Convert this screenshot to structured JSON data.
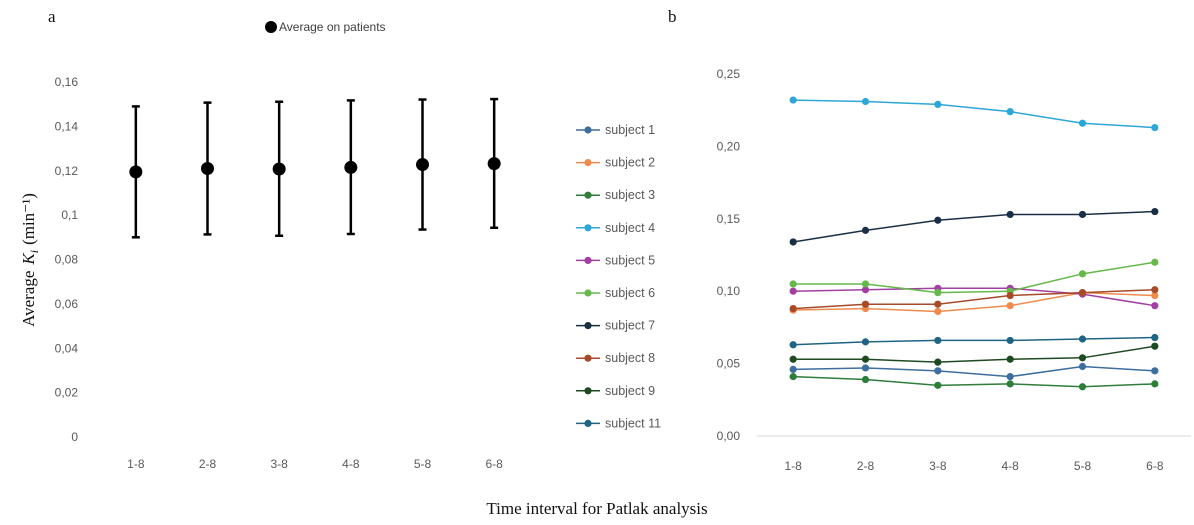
{
  "figure": {
    "xlabel": "Time interval for Patlak analysis"
  },
  "chart_data": [
    {
      "panel": "a",
      "type": "scatter",
      "error_bars": true,
      "legend": "Average on patients",
      "legend_position": "top",
      "ylabel_text": "Average",
      "ylabel_symbol": "K",
      "ylabel_subscript": "i",
      "ylabel_unit": "(min⁻¹)",
      "categories": [
        "1-8",
        "2-8",
        "3-8",
        "4-8",
        "5-8",
        "6-8"
      ],
      "values": [
        0.1195,
        0.121,
        0.1208,
        0.1215,
        0.1228,
        0.1232
      ],
      "error_low": [
        0.09,
        0.0913,
        0.0907,
        0.0915,
        0.0935,
        0.0943
      ],
      "error_high": [
        0.149,
        0.1507,
        0.1511,
        0.1517,
        0.1521,
        0.1523
      ],
      "ylim": [
        0,
        0.16
      ],
      "yticks": [
        "0",
        "0,02",
        "0,04",
        "0,06",
        "0,08",
        "0,1",
        "0,12",
        "0,14",
        "0,16"
      ],
      "ytick_values": [
        0,
        0.02,
        0.04,
        0.06,
        0.08,
        0.1,
        0.12,
        0.14,
        0.16
      ],
      "grid": false,
      "color": "#000000"
    },
    {
      "panel": "b",
      "type": "line",
      "legend_position": "left",
      "categories": [
        "1-8",
        "2-8",
        "3-8",
        "4-8",
        "5-8",
        "6-8"
      ],
      "ylim": [
        0,
        0.25
      ],
      "yticks": [
        "0,00",
        "0,05",
        "0,10",
        "0,15",
        "0,20",
        "0,25"
      ],
      "ytick_values": [
        0,
        0.05,
        0.1,
        0.15,
        0.2,
        0.25
      ],
      "grid": false,
      "series": [
        {
          "name": "subject 1",
          "color": "#3D6E9E",
          "values": [
            0.046,
            0.047,
            0.045,
            0.041,
            0.048,
            0.045
          ]
        },
        {
          "name": "subject 2",
          "color": "#ED8B4F",
          "values": [
            0.087,
            0.088,
            0.086,
            0.09,
            0.099,
            0.097
          ]
        },
        {
          "name": "subject 3",
          "color": "#2E7D3A",
          "values": [
            0.041,
            0.039,
            0.035,
            0.036,
            0.034,
            0.036
          ]
        },
        {
          "name": "subject 4",
          "color": "#2EA7D6",
          "values": [
            0.232,
            0.231,
            0.229,
            0.224,
            0.216,
            0.213
          ]
        },
        {
          "name": "subject 5",
          "color": "#A23FA3",
          "values": [
            0.1,
            0.101,
            0.102,
            0.102,
            0.098,
            0.09
          ]
        },
        {
          "name": "subject 6",
          "color": "#66B84A",
          "values": [
            0.105,
            0.105,
            0.099,
            0.1,
            0.112,
            0.12
          ]
        },
        {
          "name": "subject 7",
          "color": "#1B2F44",
          "values": [
            0.134,
            0.142,
            0.149,
            0.153,
            0.153,
            0.155
          ]
        },
        {
          "name": "subject 8",
          "color": "#A64A28",
          "values": [
            0.088,
            0.091,
            0.091,
            0.097,
            0.099,
            0.101
          ]
        },
        {
          "name": "subject 9",
          "color": "#1E4A22",
          "values": [
            0.053,
            0.053,
            0.051,
            0.053,
            0.054,
            0.062
          ]
        },
        {
          "name": "subject 11",
          "color": "#1F6482",
          "values": [
            0.063,
            0.065,
            0.066,
            0.066,
            0.067,
            0.068
          ]
        }
      ]
    }
  ]
}
